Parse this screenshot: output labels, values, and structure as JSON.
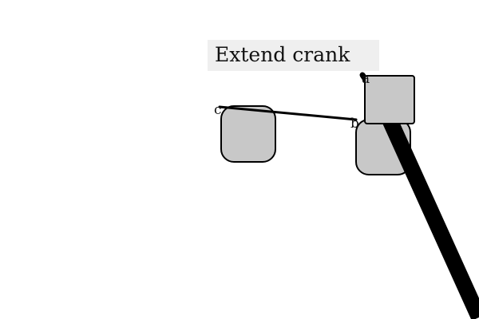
{
  "title": "Extend crank",
  "points": {
    "a": "a",
    "b": "b",
    "c": "c"
  },
  "colors": {
    "block_fill": "#c8c8c8",
    "stroke": "#000000",
    "label_bg": "#efefef"
  }
}
